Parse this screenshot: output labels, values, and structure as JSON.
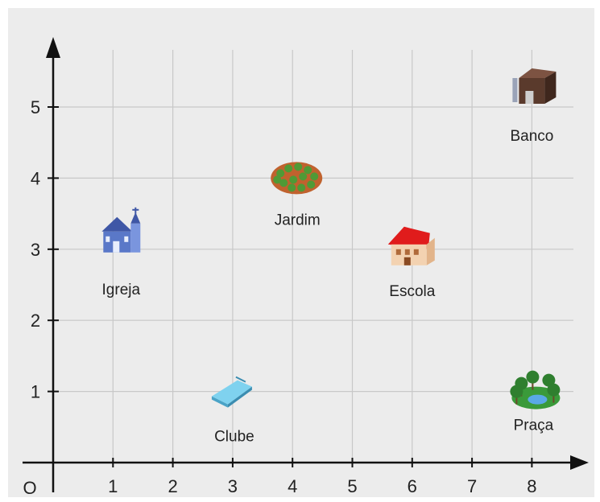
{
  "diagram": {
    "origin_label": "O",
    "x_ticks": [
      "1",
      "2",
      "3",
      "4",
      "5",
      "6",
      "7",
      "8"
    ],
    "y_ticks": [
      "1",
      "2",
      "3",
      "4",
      "5"
    ],
    "x_range": [
      0,
      8.6
    ],
    "y_range": [
      0,
      5.5
    ],
    "colors": {
      "background": "#ececec",
      "grid": "#c8c8c8",
      "axis": "#111111"
    },
    "places": [
      {
        "label": "Igreja",
        "x": 1,
        "y": 3,
        "icon": "church-icon"
      },
      {
        "label": "Jardim",
        "x": 4,
        "y": 4,
        "icon": "garden-icon"
      },
      {
        "label": "Escola",
        "x": 6,
        "y": 3,
        "icon": "school-icon"
      },
      {
        "label": "Banco",
        "x": 8,
        "y": 5,
        "icon": "bank-icon"
      },
      {
        "label": "Clube",
        "x": 3,
        "y": 1,
        "icon": "pool-icon"
      },
      {
        "label": "Praça",
        "x": 8,
        "y": 1,
        "icon": "park-icon"
      }
    ]
  }
}
